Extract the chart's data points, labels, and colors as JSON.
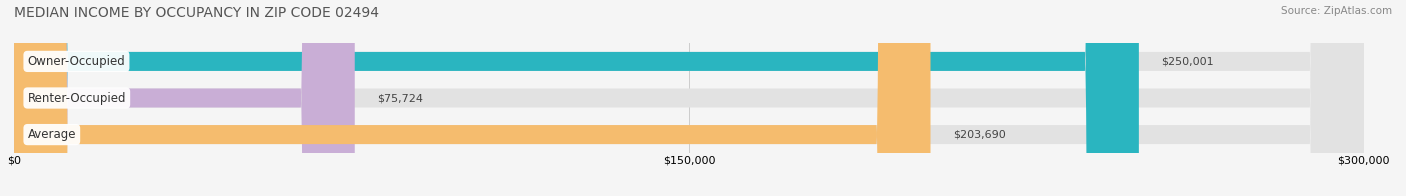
{
  "title": "MEDIAN INCOME BY OCCUPANCY IN ZIP CODE 02494",
  "source": "Source: ZipAtlas.com",
  "categories": [
    "Owner-Occupied",
    "Renter-Occupied",
    "Average"
  ],
  "values": [
    250001,
    75724,
    203690
  ],
  "labels": [
    "$250,001",
    "$75,724",
    "$203,690"
  ],
  "bar_colors": [
    "#2ab5c0",
    "#c9aed6",
    "#f5bc6e"
  ],
  "xmax": 300000,
  "xticks": [
    0,
    150000,
    300000
  ],
  "xtick_labels": [
    "$0",
    "$150,000",
    "$300,000"
  ],
  "background_color": "#f5f5f5",
  "bar_bg_color": "#e2e2e2",
  "title_fontsize": 10,
  "source_fontsize": 7.5,
  "label_fontsize": 8,
  "bar_height": 0.52
}
